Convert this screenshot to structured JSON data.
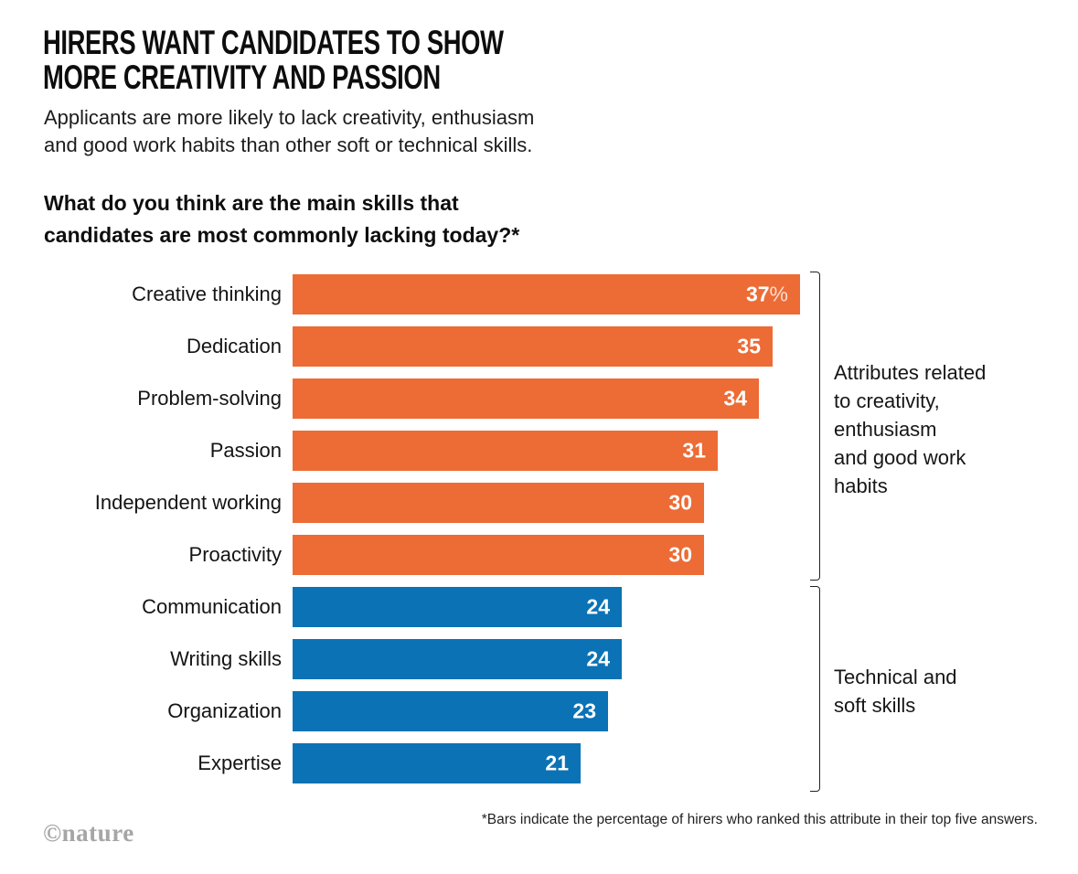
{
  "header": {
    "title_line1": "HIRERS WANT CANDIDATES TO SHOW",
    "title_line2": "MORE CREATIVITY AND PASSION",
    "subtitle": "Applicants are more likely to lack creativity, enthusiasm\nand good work habits than other soft or technical skills.",
    "question": "What do you think are the main skills that\ncandidates are most commonly lacking today?*"
  },
  "chart_data": {
    "type": "bar",
    "orientation": "horizontal",
    "title": "What do you think are the main skills that candidates are most commonly lacking today?*",
    "categories": [
      "Creative thinking",
      "Dedication",
      "Problem-solving",
      "Passion",
      "Independent working",
      "Proactivity",
      "Communication",
      "Writing skills",
      "Organization",
      "Expertise"
    ],
    "values": [
      37,
      35,
      34,
      31,
      30,
      30,
      24,
      24,
      23,
      21
    ],
    "value_labels": [
      "37%",
      "35",
      "34",
      "31",
      "30",
      "30",
      "24",
      "24",
      "23",
      "21"
    ],
    "unit": "percent",
    "xlim": [
      0,
      40
    ],
    "grid": false,
    "groups": [
      "creativity",
      "creativity",
      "creativity",
      "creativity",
      "creativity",
      "creativity",
      "technical",
      "technical",
      "technical",
      "technical"
    ],
    "colors": {
      "creativity": "#ED6B35",
      "technical": "#0B72B5"
    },
    "annotations": [
      {
        "group": "creativity",
        "text": "Attributes related to creativity, enthusiasm and good work habits",
        "display": "Attributes related\nto creativity,\nenthusiasm\nand good work\nhabits"
      },
      {
        "group": "technical",
        "text": "Technical and soft skills",
        "display": "Technical and\nsoft skills"
      }
    ]
  },
  "footer": {
    "footnote": "*Bars indicate the percentage of hirers who ranked this attribute in their top five answers.",
    "credit": "©nature"
  }
}
